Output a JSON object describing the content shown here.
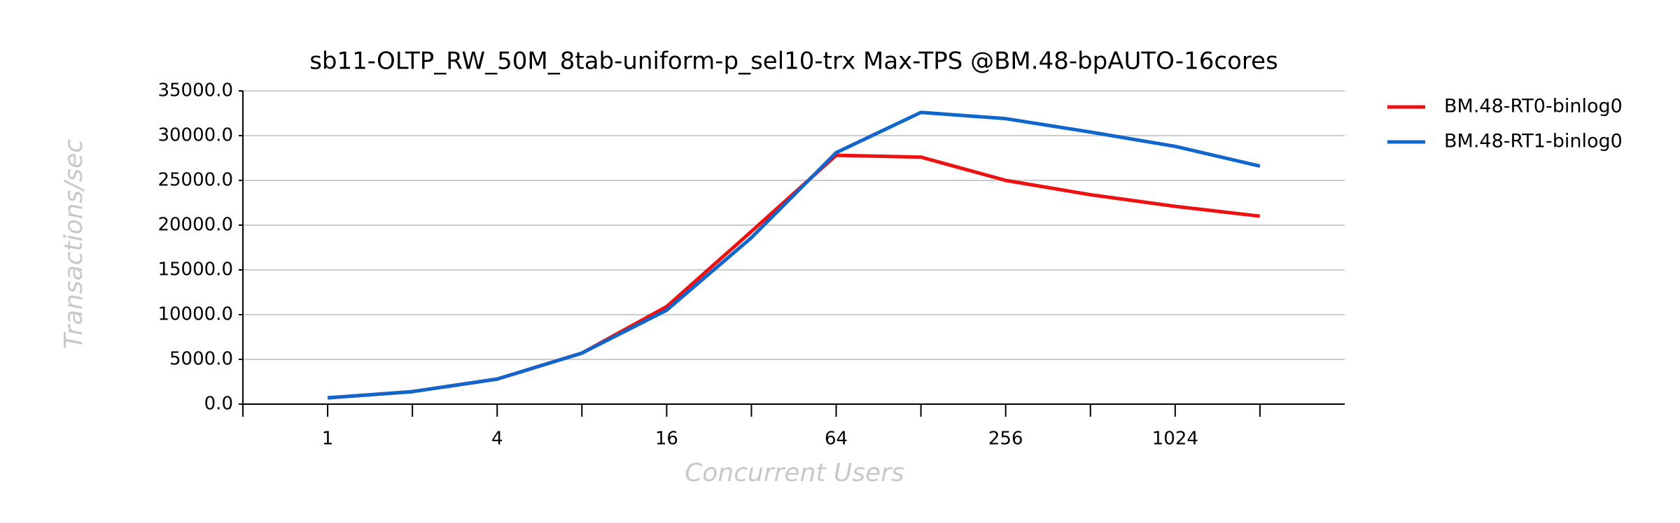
{
  "chart_data": {
    "type": "line",
    "title": "sb11-OLTP_RW_50M_8tab-uniform-p_sel10-trx Max-TPS @BM.48-bpAUTO-16cores",
    "x_label": "Concurrent Users",
    "y_label": "Transactions/sec",
    "categories": [
      "1",
      null,
      "4",
      null,
      "16",
      null,
      "64",
      null,
      "256",
      null,
      "1024",
      null
    ],
    "series": [
      {
        "name": "BM.48-RT0-binlog0",
        "color": "#ee1111",
        "values": [
          700,
          1400,
          2800,
          5700,
          10900,
          19300,
          27800,
          27600,
          25000,
          23400,
          22100,
          21000
        ]
      },
      {
        "name": "BM.48-RT1-binlog0",
        "color": "#1166cc",
        "values": [
          700,
          1400,
          2800,
          5700,
          10500,
          18600,
          28100,
          32600,
          31900,
          30400,
          28800,
          26600
        ]
      }
    ],
    "ylim": [
      0,
      35000
    ],
    "yticks": [
      {
        "value": 0,
        "label": "0.0"
      },
      {
        "value": 5000,
        "label": "5000.0"
      },
      {
        "value": 10000,
        "label": "10000.0"
      },
      {
        "value": 15000,
        "label": "15000.0"
      },
      {
        "value": 20000,
        "label": "20000.0"
      },
      {
        "value": 25000,
        "label": "25000.0"
      },
      {
        "value": 30000,
        "label": "30000.0"
      },
      {
        "value": 35000,
        "label": "35000.0"
      }
    ],
    "grid": true,
    "legend": "right"
  }
}
